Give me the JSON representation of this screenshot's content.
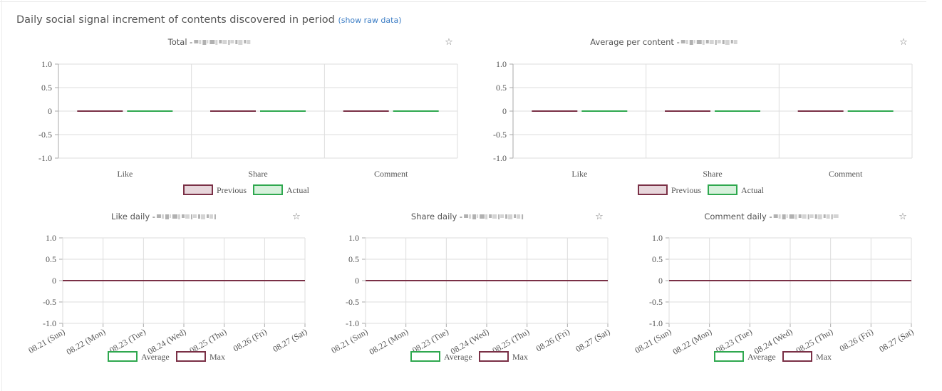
{
  "page": {
    "heading": "Daily social signal increment of contents discovered in period",
    "raw_link": "(show raw data)"
  },
  "colors": {
    "previous": "#7a3046",
    "actual": "#2fa84f",
    "previous_fill": "#e7d6db",
    "actual_fill": "#d7f1dc",
    "grid": "#dddddd",
    "axis": "#aaaaaa"
  },
  "chart_data": [
    {
      "id": "total",
      "type": "bar",
      "title": "Total - ",
      "categories": [
        "Like",
        "Share",
        "Comment"
      ],
      "series": [
        {
          "name": "Previous",
          "values": [
            0,
            0,
            0
          ]
        },
        {
          "name": "Actual",
          "values": [
            0,
            0,
            0
          ]
        }
      ],
      "ylim": [
        -1.0,
        1.0
      ],
      "yticks": [
        "1.0",
        "0.5",
        "0",
        "-0.5",
        "-1.0"
      ],
      "legend": "bottom",
      "grid": true
    },
    {
      "id": "average",
      "type": "bar",
      "title": "Average per content - ",
      "categories": [
        "Like",
        "Share",
        "Comment"
      ],
      "series": [
        {
          "name": "Previous",
          "values": [
            0,
            0,
            0
          ]
        },
        {
          "name": "Actual",
          "values": [
            0,
            0,
            0
          ]
        }
      ],
      "ylim": [
        -1.0,
        1.0
      ],
      "yticks": [
        "1.0",
        "0.5",
        "0",
        "-0.5",
        "-1.0"
      ],
      "legend": "bottom",
      "grid": true
    },
    {
      "id": "like-daily",
      "type": "line",
      "title": "Like daily - ",
      "x": [
        "08.21 (Sun)",
        "08.22 (Mon)",
        "08.23 (Tue)",
        "08.24 (Wed)",
        "08.25 (Thu)",
        "08.26 (Fri)",
        "08.27 (Sat)"
      ],
      "series": [
        {
          "name": "Average",
          "values": [
            0,
            0,
            0,
            0,
            0,
            0,
            0
          ]
        },
        {
          "name": "Max",
          "values": [
            0,
            0,
            0,
            0,
            0,
            0,
            0
          ]
        }
      ],
      "ylim": [
        -1.0,
        1.0
      ],
      "yticks": [
        "1.0",
        "0.5",
        "0",
        "-0.5",
        "-1.0"
      ],
      "legend": "bottom",
      "grid": true
    },
    {
      "id": "share-daily",
      "type": "line",
      "title": "Share daily - ",
      "x": [
        "08.21 (Sun)",
        "08.22 (Mon)",
        "08.23 (Tue)",
        "08.24 (Wed)",
        "08.25 (Thu)",
        "08.26 (Fri)",
        "08.27 (Sat)"
      ],
      "series": [
        {
          "name": "Average",
          "values": [
            0,
            0,
            0,
            0,
            0,
            0,
            0
          ]
        },
        {
          "name": "Max",
          "values": [
            0,
            0,
            0,
            0,
            0,
            0,
            0
          ]
        }
      ],
      "ylim": [
        -1.0,
        1.0
      ],
      "yticks": [
        "1.0",
        "0.5",
        "0",
        "-0.5",
        "-1.0"
      ],
      "legend": "bottom",
      "grid": true
    },
    {
      "id": "comment-daily",
      "type": "line",
      "title": "Comment daily - ",
      "x": [
        "08.21 (Sun)",
        "08.22 (Mon)",
        "08.23 (Tue)",
        "08.24 (Wed)",
        "08.25 (Thu)",
        "08.26 (Fri)",
        "08.27 (Sat)"
      ],
      "series": [
        {
          "name": "Average",
          "values": [
            0,
            0,
            0,
            0,
            0,
            0,
            0
          ]
        },
        {
          "name": "Max",
          "values": [
            0,
            0,
            0,
            0,
            0,
            0,
            0
          ]
        }
      ],
      "ylim": [
        -1.0,
        1.0
      ],
      "yticks": [
        "1.0",
        "0.5",
        "0",
        "-0.5",
        "-1.0"
      ],
      "legend": "bottom",
      "grid": true
    }
  ]
}
